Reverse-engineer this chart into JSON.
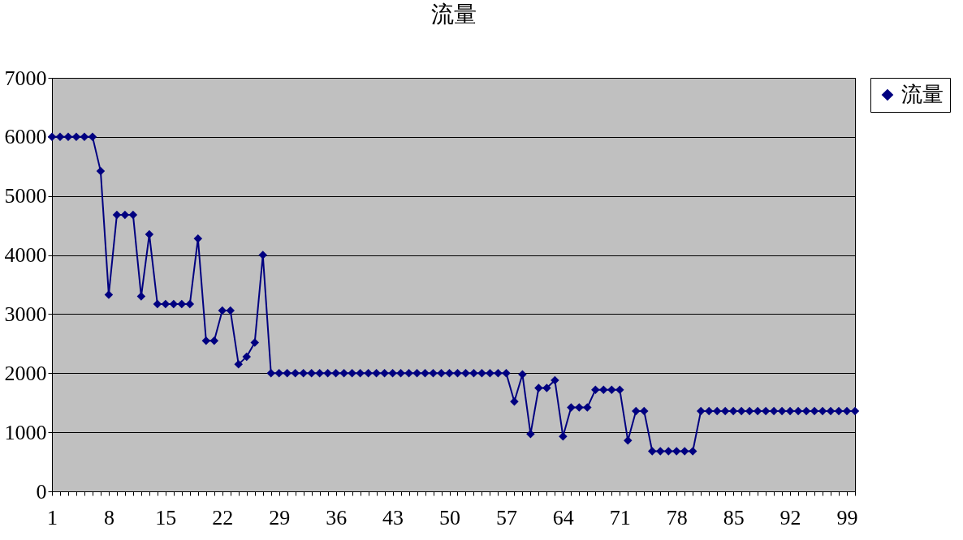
{
  "chart_data": {
    "type": "line",
    "title": "流量",
    "categories": [
      "1",
      null,
      null,
      null,
      null,
      null,
      null,
      "8",
      null,
      null,
      null,
      null,
      null,
      null,
      "15",
      null,
      null,
      null,
      null,
      null,
      null,
      "22",
      null,
      null,
      null,
      null,
      null,
      null,
      "29",
      null,
      null,
      null,
      null,
      null,
      null,
      "36",
      null,
      null,
      null,
      null,
      null,
      null,
      "43",
      null,
      null,
      null,
      null,
      null,
      null,
      "50",
      null,
      null,
      null,
      null,
      null,
      null,
      "57",
      null,
      null,
      null,
      null,
      null,
      null,
      "64",
      null,
      null,
      null,
      null,
      null,
      null,
      "71",
      null,
      null,
      null,
      null,
      null,
      null,
      "78",
      null,
      null,
      null,
      null,
      null,
      null,
      "85",
      null,
      null,
      null,
      null,
      null,
      null,
      "92",
      null,
      null,
      null,
      null,
      null,
      null,
      "99",
      null
    ],
    "series": [
      {
        "name": "流量",
        "color": "#000080",
        "values": [
          6000,
          6000,
          6000,
          6000,
          6000,
          6000,
          5420,
          3330,
          4680,
          4680,
          4680,
          3300,
          4350,
          3170,
          3170,
          3170,
          3170,
          3170,
          4280,
          2550,
          2550,
          3060,
          3060,
          2150,
          2280,
          2520,
          4000,
          2000,
          2000,
          2000,
          2000,
          2000,
          2000,
          2000,
          2000,
          2000,
          2000,
          2000,
          2000,
          2000,
          2000,
          2000,
          2000,
          2000,
          2000,
          2000,
          2000,
          2000,
          2000,
          2000,
          2000,
          2000,
          2000,
          2000,
          2000,
          2000,
          2000,
          1520,
          1980,
          970,
          1750,
          1750,
          1880,
          930,
          1420,
          1420,
          1420,
          1720,
          1720,
          1720,
          1720,
          860,
          1360,
          1360,
          680,
          680,
          680,
          680,
          680,
          680,
          1360,
          1360,
          1360,
          1360,
          1360,
          1360,
          1360,
          1360,
          1360,
          1360,
          1360,
          1360,
          1360,
          1360,
          1360,
          1360,
          1360,
          1360,
          1360,
          1360
        ]
      }
    ],
    "ylim": [
      0,
      7000
    ],
    "yticks": [
      0,
      1000,
      2000,
      3000,
      4000,
      5000,
      6000,
      7000
    ],
    "grid": "y",
    "legend": "right",
    "marker": "diamond",
    "line_style": "solid"
  }
}
